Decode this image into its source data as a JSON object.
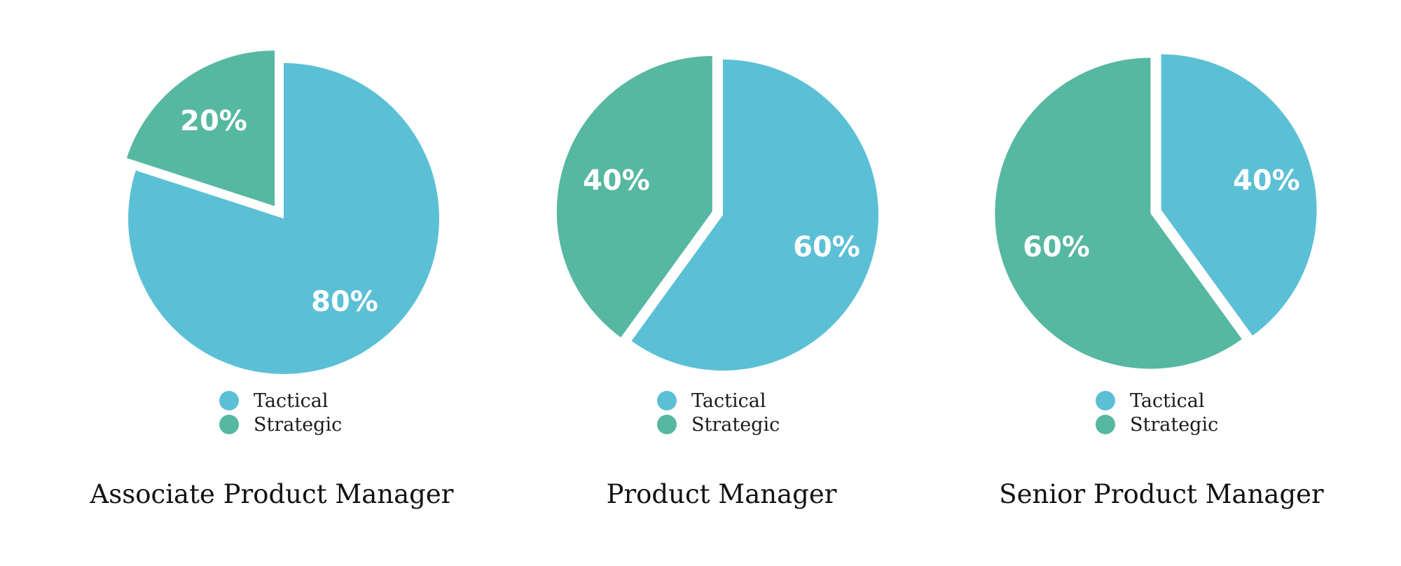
{
  "colors": {
    "tactical": "#5BC0D6",
    "strategic": "#56B8A0",
    "background": "#FFFFFF"
  },
  "legend": {
    "items": [
      {
        "label": "Tactical",
        "color": "#5BC0D6"
      },
      {
        "label": "Strategic",
        "color": "#56B8A0"
      }
    ]
  },
  "charts": [
    {
      "title": "Associate Product Manager",
      "slices": [
        {
          "label": "Tactical",
          "value": 80,
          "text": "80%"
        },
        {
          "label": "Strategic",
          "value": 20,
          "text": "20%"
        }
      ]
    },
    {
      "title": "Product Manager",
      "slices": [
        {
          "label": "Tactical",
          "value": 60,
          "text": "60%"
        },
        {
          "label": "Strategic",
          "value": 40,
          "text": "40%"
        }
      ]
    },
    {
      "title": "Senior Product Manager",
      "slices": [
        {
          "label": "Tactical",
          "value": 40,
          "text": "40%"
        },
        {
          "label": "Strategic",
          "value": 60,
          "text": "60%"
        }
      ]
    }
  ],
  "chart_data": [
    {
      "type": "pie",
      "title": "Associate Product Manager",
      "categories": [
        "Tactical",
        "Strategic"
      ],
      "values": [
        80,
        20
      ],
      "legend": [
        "Tactical",
        "Strategic"
      ],
      "legend_position": "bottom"
    },
    {
      "type": "pie",
      "title": "Product Manager",
      "categories": [
        "Tactical",
        "Strategic"
      ],
      "values": [
        60,
        40
      ],
      "legend": [
        "Tactical",
        "Strategic"
      ],
      "legend_position": "bottom"
    },
    {
      "type": "pie",
      "title": "Senior Product Manager",
      "categories": [
        "Tactical",
        "Strategic"
      ],
      "values": [
        40,
        60
      ],
      "legend": [
        "Tactical",
        "Strategic"
      ],
      "legend_position": "bottom"
    }
  ]
}
